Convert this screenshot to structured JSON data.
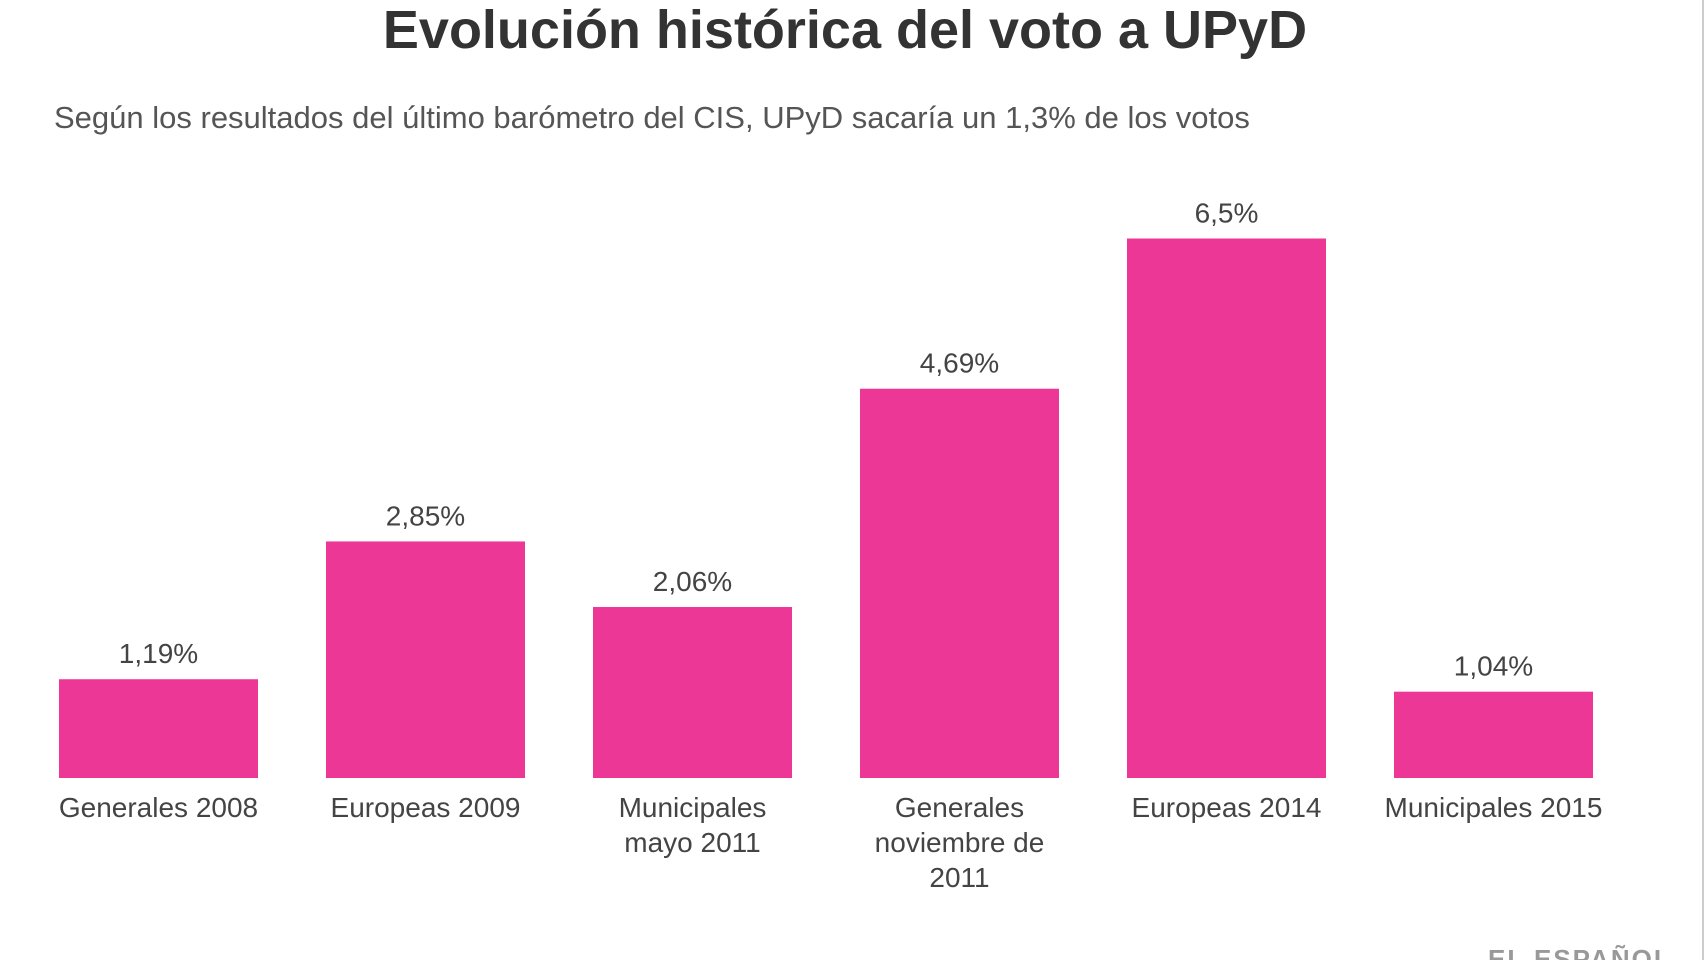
{
  "chart_data": {
    "type": "bar",
    "title": "Evolución histórica del voto a UPyD",
    "subtitle": "Según los resultados del último barómetro del CIS, UPyD sacaría un 1,3% de los votos",
    "categories": [
      "Generales 2008",
      "Europeas 2009",
      "Municipales mayo 2011",
      "Generales noviembre de 2011",
      "Europeas 2014",
      "Municipales 2015"
    ],
    "values": [
      1.19,
      2.85,
      2.06,
      4.69,
      6.5,
      1.04
    ],
    "value_labels": [
      "1,19%",
      "2,85%",
      "2,06%",
      "4,69%",
      "6,5%",
      "1,04%"
    ],
    "color": "#ec3797",
    "source": "EL ESPAÑOL"
  }
}
